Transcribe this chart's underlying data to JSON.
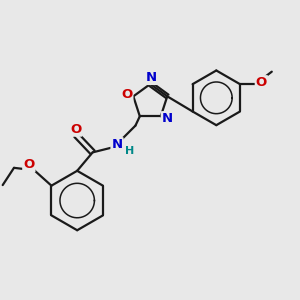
{
  "bg_color": "#e8e8e8",
  "bond_color": "#1a1a1a",
  "bond_width": 1.6,
  "atom_colors": {
    "O": "#cc0000",
    "N": "#0000cc",
    "C": "#1a1a1a",
    "H": "#008888"
  },
  "font_size": 8.5,
  "figsize": [
    3.0,
    3.0
  ],
  "dpi": 100
}
